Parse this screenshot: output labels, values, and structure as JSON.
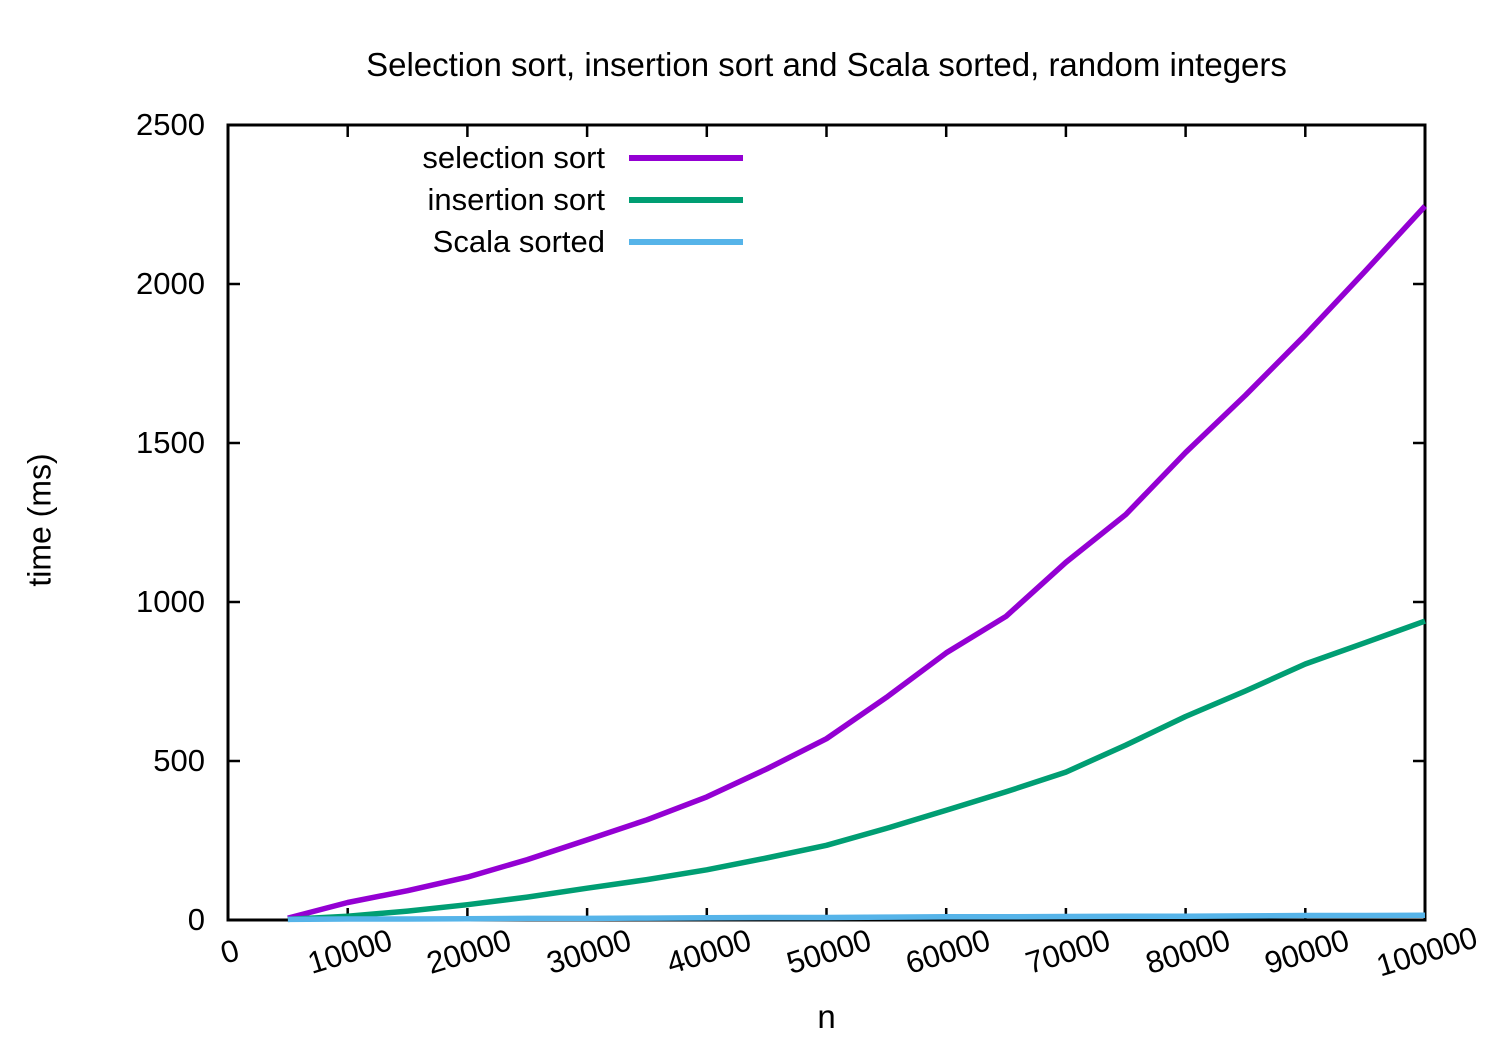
{
  "title": "Selection sort, insertion sort and Scala sorted, random integers",
  "chart_data": {
    "type": "line",
    "title": "Selection sort, insertion sort and Scala sorted, random integers",
    "xlabel": "n",
    "ylabel": "time (ms)",
    "xlim": [
      0,
      100000
    ],
    "ylim": [
      0,
      2500
    ],
    "grid": false,
    "legend_position": "top-left-inside",
    "x_tick_labels": [
      "0",
      "10000",
      "20000",
      "30000",
      "40000",
      "50000",
      "60000",
      "70000",
      "80000",
      "90000",
      "100000"
    ],
    "y_tick_labels": [
      "0",
      "500",
      "1000",
      "1500",
      "2000",
      "2500"
    ],
    "x_ticks": [
      0,
      10000,
      20000,
      30000,
      40000,
      50000,
      60000,
      70000,
      80000,
      90000,
      100000
    ],
    "y_ticks": [
      0,
      500,
      1000,
      1500,
      2000,
      2500
    ],
    "x": [
      5000,
      10000,
      15000,
      20000,
      25000,
      30000,
      35000,
      40000,
      45000,
      50000,
      55000,
      60000,
      65000,
      70000,
      75000,
      80000,
      85000,
      90000,
      95000,
      100000
    ],
    "series": [
      {
        "name": "selection sort",
        "color": "#9400d3",
        "values": [
          6,
          55,
          92,
          135,
          190,
          252,
          315,
          387,
          475,
          570,
          700,
          840,
          955,
          1125,
          1275,
          1470,
          1650,
          1840,
          2040,
          2245
        ]
      },
      {
        "name": "insertion sort",
        "color": "#009e73",
        "values": [
          2,
          12,
          28,
          48,
          72,
          100,
          127,
          158,
          195,
          235,
          288,
          345,
          403,
          465,
          550,
          640,
          720,
          805,
          872,
          940
        ]
      },
      {
        "name": "Scala sorted",
        "color": "#56b4e9",
        "values": [
          2,
          3,
          3,
          4,
          5,
          5,
          6,
          7,
          8,
          8,
          9,
          10,
          10,
          11,
          12,
          12,
          13,
          14,
          14,
          15
        ]
      }
    ],
    "axis_color": "#000000"
  }
}
